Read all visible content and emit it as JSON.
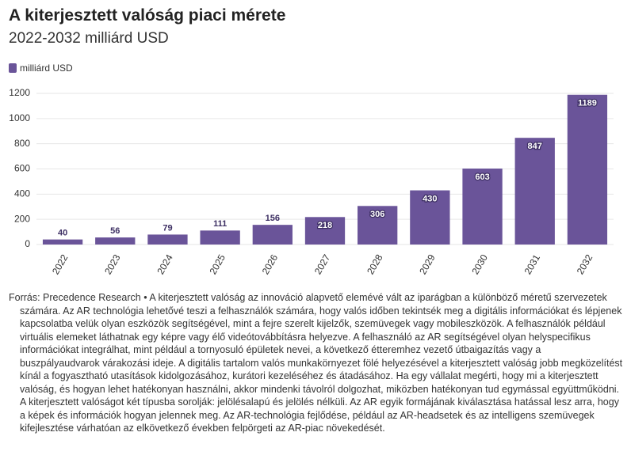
{
  "chart_data": {
    "type": "bar",
    "title": "A kiterjesztett valóság piaci mérete",
    "subtitle": "2022-2032 milliárd USD",
    "series": [
      {
        "name": "milliárd USD",
        "color": "#6a5499",
        "values": [
          40,
          56,
          79,
          111,
          156,
          218,
          306,
          430,
          603,
          847,
          1189
        ]
      }
    ],
    "categories": [
      "2022",
      "2023",
      "2024",
      "2025",
      "2026",
      "2027",
      "2028",
      "2029",
      "2030",
      "2031",
      "2032"
    ],
    "ylim": [
      0,
      1200
    ],
    "yticks": [
      0,
      200,
      400,
      600,
      800,
      1000,
      1200
    ],
    "grid": true,
    "source": "Forrás: Precedence Research • A kiterjesztett valóság az innováció alapvető elemévé vált az iparágban a különböző méretű szervezetek számára. Az AR technológia lehetővé teszi a felhasználók számára, hogy valós időben tekintsék meg a digitális információkat és lépjenek kapcsolatba velük olyan eszközök segítségével, mint a fejre szerelt kijelzők, szemüvegek vagy mobileszközök. A felhasználók például virtuális elemeket láthatnak egy képre vagy élő videótovábbításra helyezve. A felhasználó az AR segítségével olyan helyspecifikus információkat integrálhat, mint például a tornyosuló épületek nevei, a következő étteremhez vezető útbaigazítás vagy a buszpályaudvarok várakozási ideje. A digitális tartalom valós munkakörnyezet fölé helyezésével a kiterjesztett valóság jobb megközelítést kínál a fogyasztható utasítások kidolgozásához, kurátori kezeléséhez és átadásához. Ha egy vállalat megérti, hogy mi a kiterjesztett valóság, és hogyan lehet hatékonyan használni, akkor mindenki távolról dolgozhat, miközben hatékonyan tud egymással együttműködni. A kiterjesztett valóságot két típusba sorolják: jelölésalapú és jelölés nélküli. Az AR egyik formájának kiválasztása hatással lesz arra, hogy a képek és információk hogyan jelennek meg. Az AR-technológia fejlődése, például az AR-headsetek és az intelligens szemüvegek kifejlesztése várhatóan az elkövetkező években felpörgeti az AR-piac növekedését."
  }
}
